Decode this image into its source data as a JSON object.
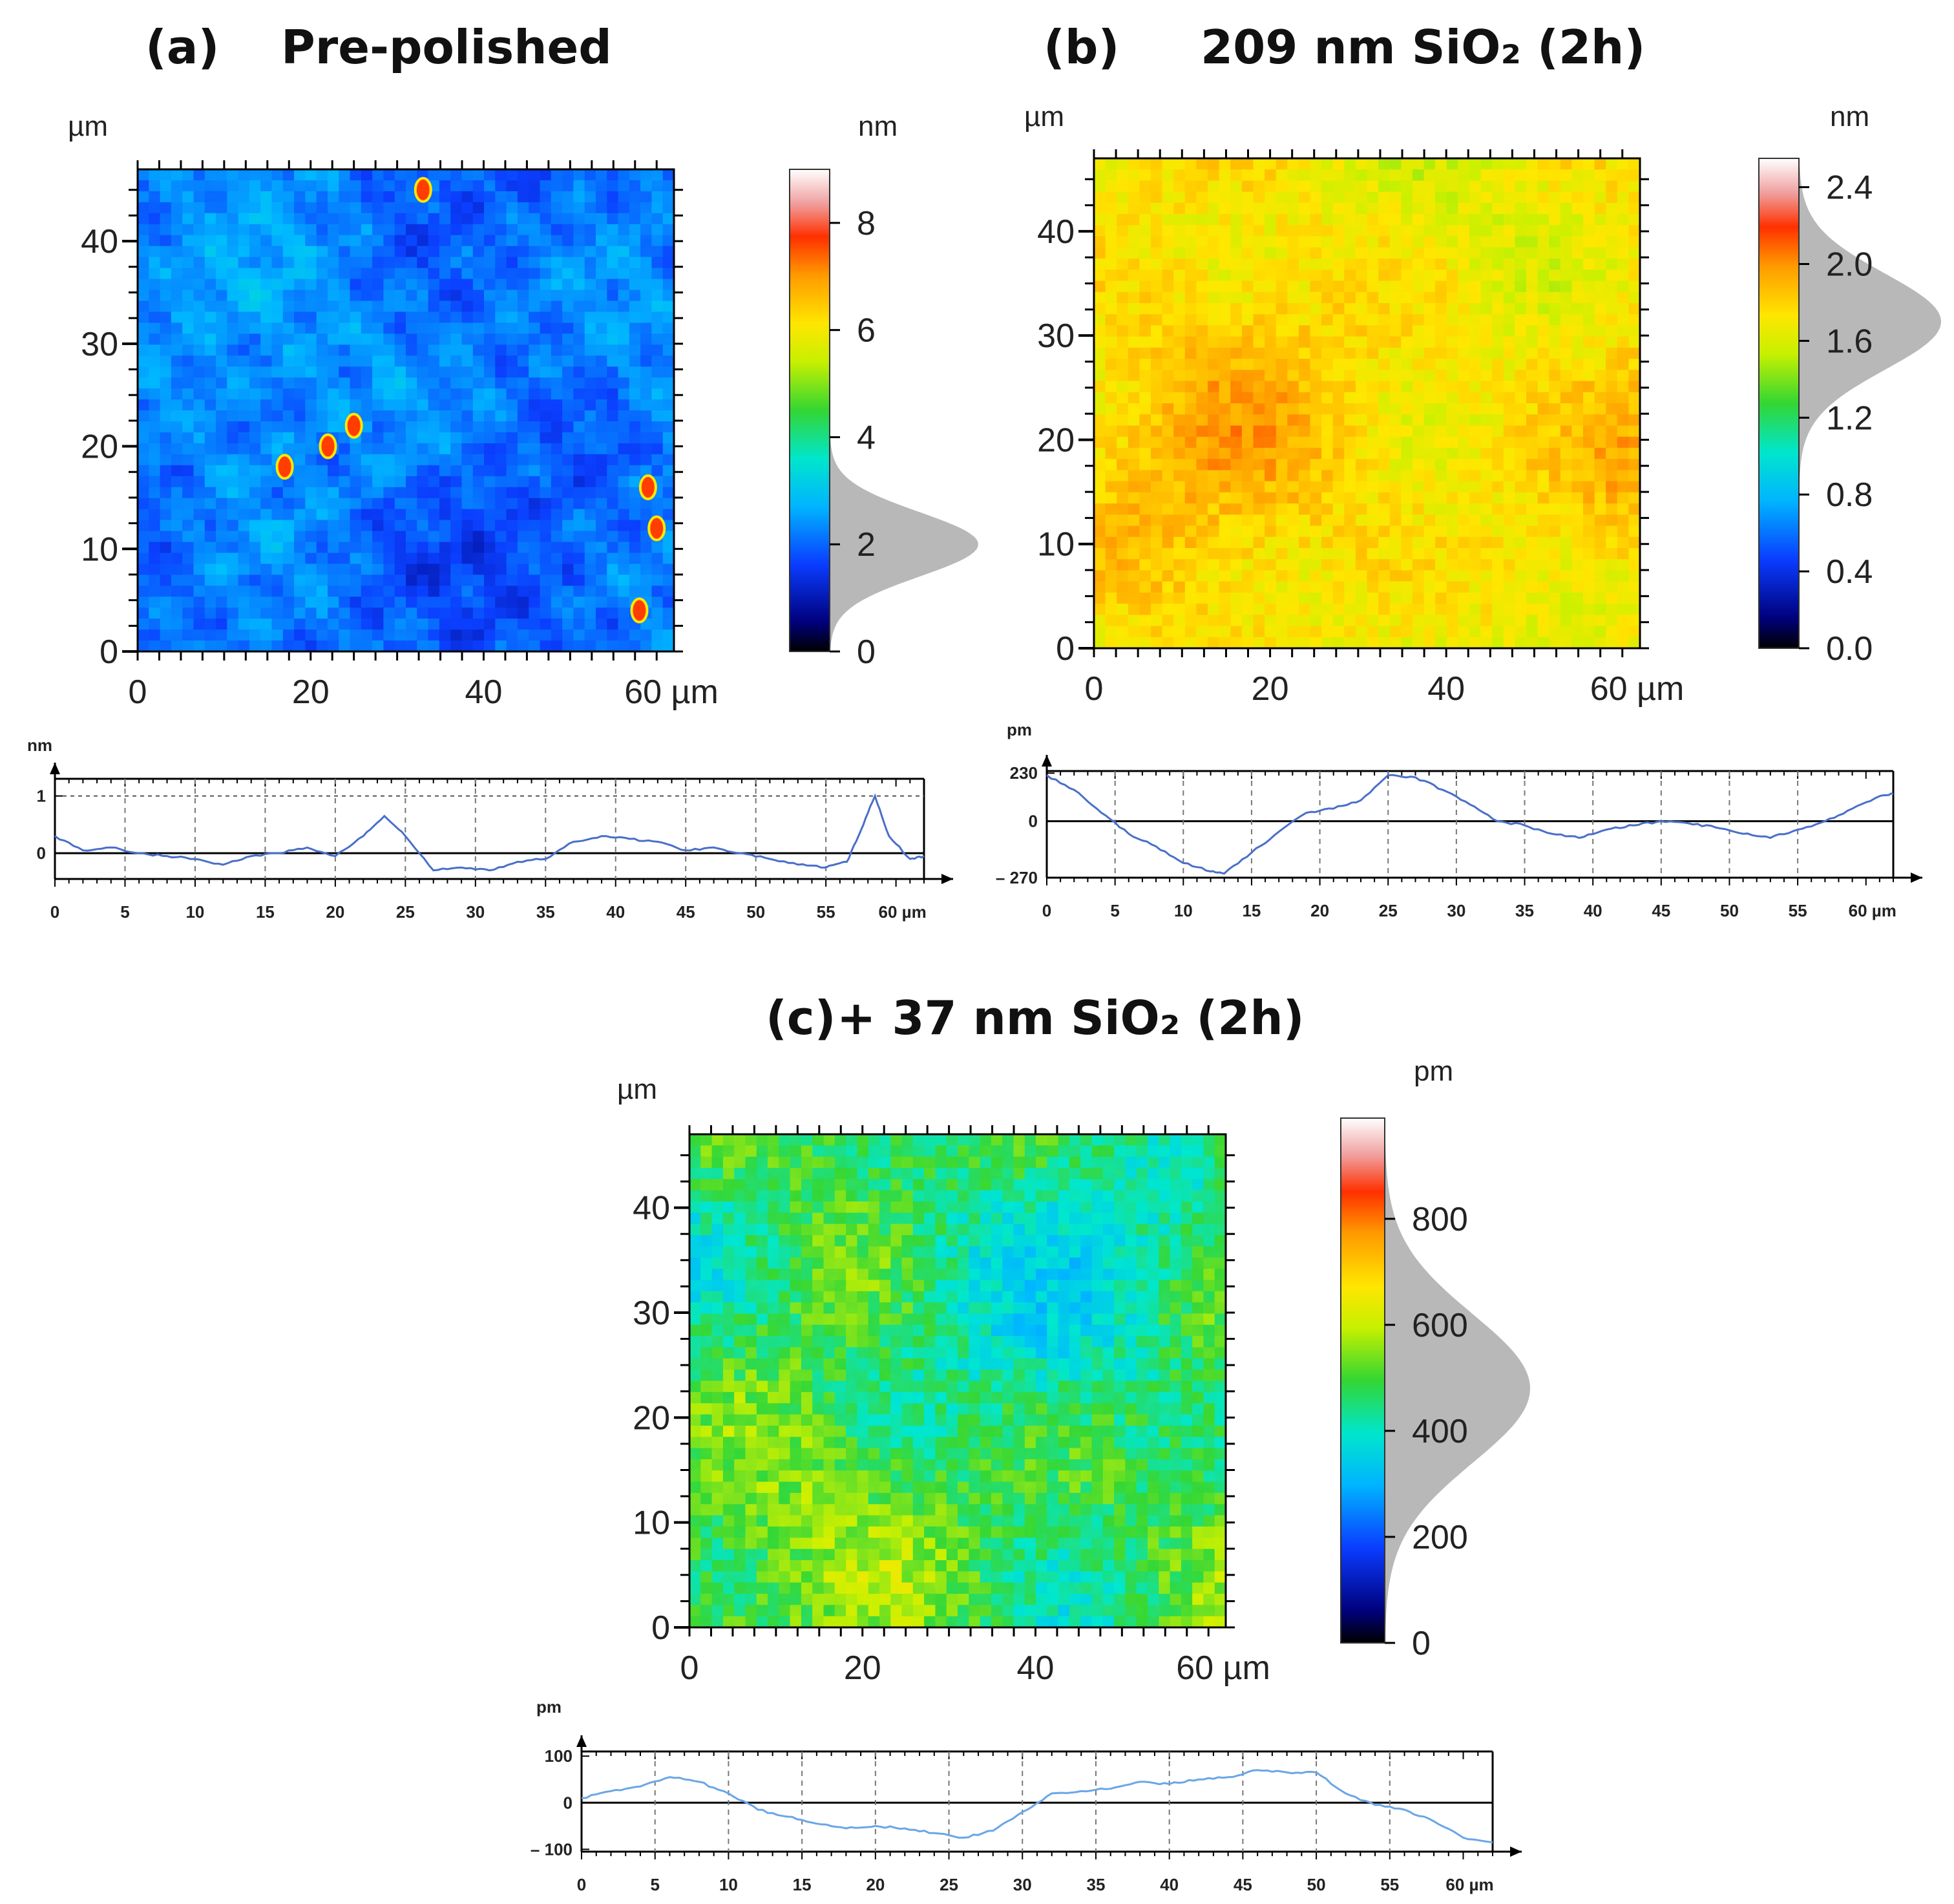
{
  "chart_data": [
    {
      "type": "heatmap",
      "panel": "a",
      "label": "(a)",
      "title": "Pre-polished",
      "x_unit": "µm",
      "y_unit": "µm",
      "xlim": [
        0,
        62
      ],
      "ylim": [
        0,
        47
      ],
      "x_ticks": [
        0,
        20,
        40
      ],
      "x_tick_labels": [
        "0",
        "20",
        "40",
        "60 µm"
      ],
      "y_ticks": [
        0,
        10,
        20,
        30,
        40
      ],
      "y_tick_labels": [
        "0",
        "10",
        "20",
        "30",
        "40"
      ],
      "colorbar": {
        "unit": "nm",
        "range": [
          0,
          9
        ],
        "ticks": [
          0,
          2,
          4,
          6,
          8
        ],
        "tick_labels": [
          "0",
          "2",
          "4",
          "6",
          "8"
        ],
        "histogram_mode": 2.0,
        "histogram_spread": 0.6
      },
      "texture": "scratched",
      "base_value": 2.1,
      "hotspots": [
        [
          17,
          18
        ],
        [
          22,
          20
        ],
        [
          25,
          22
        ],
        [
          60,
          12
        ],
        [
          58,
          4
        ],
        [
          33,
          45
        ],
        [
          59,
          16
        ]
      ],
      "profile": {
        "unit": "nm",
        "y_ticks": [
          0,
          1
        ],
        "y_tick_labels": [
          "0",
          "1"
        ],
        "ylim": [
          -0.45,
          1.3
        ],
        "dotted_ref": 1.0,
        "x_ticks": [
          0,
          5,
          10,
          15,
          20,
          25,
          30,
          35,
          40,
          45,
          50,
          55
        ],
        "x_tick_labels": [
          "0",
          "5",
          "10",
          "15",
          "20",
          "25",
          "30",
          "35",
          "40",
          "45",
          "50",
          "55",
          "60 µm"
        ],
        "x": [
          0,
          2,
          4,
          6,
          8,
          10,
          12,
          14,
          16,
          18,
          20,
          22,
          23.5,
          25,
          27,
          29,
          31,
          33,
          35,
          37,
          39,
          41,
          43,
          45,
          47,
          49,
          51,
          53,
          55,
          56.5,
          57.5,
          58.5,
          59.5,
          61,
          62
        ],
        "y": [
          0.3,
          0.05,
          0.1,
          0.0,
          -0.05,
          -0.1,
          -0.2,
          -0.05,
          0.0,
          0.1,
          -0.05,
          0.3,
          0.65,
          0.3,
          -0.3,
          -0.25,
          -0.3,
          -0.15,
          -0.1,
          0.2,
          0.3,
          0.25,
          0.2,
          0.05,
          0.1,
          0.0,
          -0.1,
          -0.2,
          -0.25,
          -0.15,
          0.4,
          1.0,
          0.3,
          -0.1,
          -0.05
        ]
      }
    },
    {
      "type": "heatmap",
      "panel": "b",
      "label": "(b)",
      "title": "209 nm SiO₂ (2h)",
      "x_unit": "µm",
      "y_unit": "µm",
      "xlim": [
        0,
        62
      ],
      "ylim": [
        0,
        47
      ],
      "x_ticks": [
        0,
        20,
        40
      ],
      "x_tick_labels": [
        "0",
        "20",
        "40",
        "60 µm"
      ],
      "y_ticks": [
        0,
        10,
        20,
        30,
        40
      ],
      "y_tick_labels": [
        "0",
        "10",
        "20",
        "30",
        "40"
      ],
      "colorbar": {
        "unit": "nm",
        "range": [
          0,
          2.55
        ],
        "ticks": [
          0.0,
          0.4,
          0.8,
          1.2,
          1.6,
          2.0,
          2.4
        ],
        "tick_labels": [
          "0.0",
          "0.4",
          "0.8",
          "1.2",
          "1.6",
          "2.0",
          "2.4"
        ],
        "histogram_mode": 1.7,
        "histogram_spread": 0.25
      },
      "texture": "noisy",
      "base_value": 1.75,
      "hotspots": [],
      "profile": {
        "unit": "pm",
        "y_ticks": [
          -270,
          0,
          230
        ],
        "y_tick_labels": [
          "– 270",
          "0",
          "230"
        ],
        "ylim": [
          -270,
          240
        ],
        "dotted_ref": null,
        "x_ticks": [
          0,
          5,
          10,
          15,
          20,
          25,
          30,
          35,
          40,
          45,
          50,
          55
        ],
        "x_tick_labels": [
          "0",
          "5",
          "10",
          "15",
          "20",
          "25",
          "30",
          "35",
          "40",
          "45",
          "50",
          "55",
          "60 µm"
        ],
        "x": [
          0,
          2,
          4,
          6,
          8,
          10,
          12,
          13,
          15,
          17,
          19,
          21,
          23,
          25,
          27,
          29,
          31,
          33,
          35,
          37,
          39,
          41,
          43,
          45,
          47,
          49,
          51,
          53,
          55,
          57,
          59,
          61,
          62
        ],
        "y": [
          220,
          150,
          40,
          -60,
          -120,
          -200,
          -240,
          -250,
          -150,
          -50,
          40,
          60,
          100,
          220,
          210,
          150,
          80,
          0,
          -20,
          -60,
          -80,
          -40,
          -20,
          0,
          -10,
          -30,
          -60,
          -80,
          -40,
          0,
          60,
          120,
          130
        ]
      }
    },
    {
      "type": "heatmap",
      "panel": "c",
      "label": "(c)",
      "title": "+ 37 nm SiO₂ (2h)",
      "x_unit": "µm",
      "y_unit": "µm",
      "xlim": [
        0,
        62
      ],
      "ylim": [
        0,
        47
      ],
      "x_ticks": [
        0,
        20,
        40
      ],
      "x_tick_labels": [
        "0",
        "20",
        "40",
        "60 µm"
      ],
      "y_ticks": [
        0,
        10,
        20,
        30,
        40
      ],
      "y_tick_labels": [
        "0",
        "10",
        "20",
        "30",
        "40"
      ],
      "colorbar": {
        "unit": "pm",
        "range": [
          0,
          990
        ],
        "ticks": [
          0,
          200,
          400,
          600,
          800
        ],
        "tick_labels": [
          "0",
          "200",
          "400",
          "600",
          "800"
        ],
        "histogram_mode": 480,
        "histogram_spread": 140
      },
      "texture": "noisy",
      "base_value": 470,
      "hotspots": [],
      "profile": {
        "unit": "pm",
        "y_ticks": [
          -100,
          0,
          100
        ],
        "y_tick_labels": [
          "– 100",
          "0",
          "100"
        ],
        "ylim": [
          -105,
          110
        ],
        "dotted_ref": null,
        "x_ticks": [
          0,
          5,
          10,
          15,
          20,
          25,
          30,
          35,
          40,
          45,
          50,
          55
        ],
        "x_tick_labels": [
          "0",
          "5",
          "10",
          "15",
          "20",
          "25",
          "30",
          "35",
          "40",
          "45",
          "50",
          "55",
          "60 µm"
        ],
        "x": [
          0,
          2,
          4,
          6,
          8,
          10,
          12,
          14,
          16,
          18,
          20,
          22,
          24,
          26,
          28,
          30,
          32,
          34,
          36,
          38,
          40,
          42,
          44,
          46,
          48,
          50,
          52,
          54,
          56,
          58,
          60,
          62
        ],
        "y": [
          10,
          25,
          35,
          55,
          45,
          20,
          -15,
          -30,
          -45,
          -55,
          -50,
          -55,
          -65,
          -75,
          -60,
          -20,
          20,
          25,
          30,
          45,
          40,
          50,
          55,
          70,
          65,
          65,
          20,
          -5,
          -15,
          -40,
          -75,
          -85
        ]
      }
    }
  ]
}
